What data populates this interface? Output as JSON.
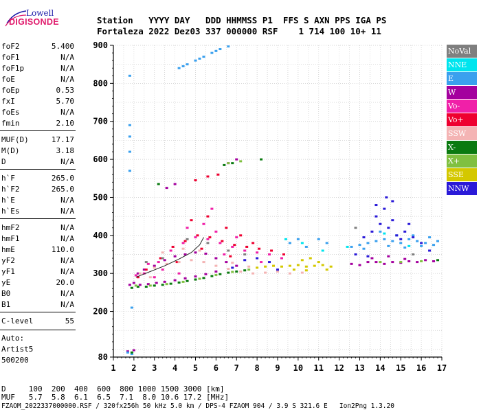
{
  "logo": {
    "line1": "Lowell",
    "line2": "DIGISONDE"
  },
  "header": {
    "line1": "Station   YYYY DAY   DDD HHMMSS P1  FFS S AXN PPS IGA PS",
    "line2": "Fortaleza 2022 Dez03 337 000000 RSF    1 714 100 10+ 11"
  },
  "params": [
    {
      "name": "foF2",
      "value": "5.400"
    },
    {
      "name": "foF1",
      "value": "N/A"
    },
    {
      "name": "foF1p",
      "value": "N/A"
    },
    {
      "name": "foE",
      "value": "N/A"
    },
    {
      "name": "foEp",
      "value": "0.53"
    },
    {
      "name": "fxI",
      "value": "5.70"
    },
    {
      "name": "foEs",
      "value": "N/A"
    },
    {
      "name": "fmin",
      "value": "2.10"
    },
    {
      "name": "MUF(D)",
      "value": "17.17"
    },
    {
      "name": "M(D)",
      "value": "3.18"
    },
    {
      "name": "D",
      "value": "N/A"
    },
    {
      "name": "h`F",
      "value": "265.0"
    },
    {
      "name": "h`F2",
      "value": "265.0"
    },
    {
      "name": "h`E",
      "value": "N/A"
    },
    {
      "name": "h`Es",
      "value": "N/A"
    },
    {
      "name": "hmF2",
      "value": "N/A"
    },
    {
      "name": "hmF1",
      "value": "N/A"
    },
    {
      "name": "hmE",
      "value": "110.0"
    },
    {
      "name": "yF2",
      "value": "N/A"
    },
    {
      "name": "yF1",
      "value": "N/A"
    },
    {
      "name": "yE",
      "value": "20.0"
    },
    {
      "name": "B0",
      "value": "N/A"
    },
    {
      "name": "B1",
      "value": "N/A"
    },
    {
      "name": "C-level",
      "value": "55"
    }
  ],
  "auto": {
    "line1": "Auto:",
    "line2": "Artist5",
    "line3": "500200"
  },
  "legend": [
    {
      "label": "NoVal",
      "color": "#7f7f7f"
    },
    {
      "label": "NNE",
      "color": "#00e5ee"
    },
    {
      "label": "E",
      "color": "#3aa0ee"
    },
    {
      "label": "W",
      "color": "#a4009e"
    },
    {
      "label": "Vo-",
      "color": "#f020a8"
    },
    {
      "label": "Vo+",
      "color": "#ee0030"
    },
    {
      "label": "SSW",
      "color": "#f4b4b4"
    },
    {
      "label": "X-",
      "color": "#0a7a10"
    },
    {
      "label": "X+",
      "color": "#80c040"
    },
    {
      "label": "SSE",
      "color": "#d4c800"
    },
    {
      "label": "NNW",
      "color": "#2a1ad8"
    }
  ],
  "footer": {
    "line1": "D     100  200  400  600  800 1000 1500 3000 [km]",
    "line2": "MUF   5.7  5.8  6.1  6.5  7.1  8.0 10.6 17.2 [MHz]",
    "line3": "FZAOM_2022337000000.RSF / 320fx256h 50 kHz 5.0 km / DPS-4 FZAOM 904 / 3.9 S 321.6 E   Ion2Png 1.3.20"
  },
  "chart_data": {
    "type": "scatter",
    "title": "",
    "xlabel": "",
    "ylabel": "",
    "xlim": [
      1,
      17
    ],
    "ylim": [
      80,
      900
    ],
    "x_ticks": [
      1,
      2,
      3,
      4,
      5,
      6,
      7,
      8,
      9,
      10,
      11,
      12,
      13,
      14,
      15,
      16,
      17
    ],
    "y_ticks": [
      80,
      200,
      300,
      400,
      500,
      600,
      700,
      800,
      900
    ],
    "grid": "dotted",
    "legend_position": "right",
    "series": [
      {
        "name": "W",
        "color": "#a4009e",
        "points": [
          [
            1.8,
            270
          ],
          [
            2.0,
            275
          ],
          [
            2.3,
            270
          ],
          [
            2.7,
            272
          ],
          [
            3.1,
            275
          ],
          [
            3.5,
            278
          ],
          [
            4.0,
            282
          ],
          [
            4.5,
            287
          ],
          [
            5.0,
            292
          ],
          [
            5.5,
            298
          ],
          [
            6.0,
            305
          ],
          [
            2.2,
            300
          ],
          [
            2.5,
            310
          ],
          [
            3.0,
            320
          ],
          [
            3.5,
            335
          ],
          [
            4.0,
            345
          ],
          [
            4.5,
            350
          ],
          [
            5.0,
            355
          ],
          [
            5.5,
            352
          ],
          [
            6.0,
            340
          ],
          [
            6.5,
            330
          ],
          [
            7.0,
            320
          ],
          [
            12.6,
            325
          ],
          [
            13.0,
            322
          ],
          [
            13.4,
            330
          ],
          [
            13.8,
            330
          ],
          [
            14.2,
            325
          ],
          [
            14.6,
            330
          ],
          [
            15.0,
            328
          ],
          [
            15.4,
            332
          ],
          [
            15.8,
            330
          ],
          [
            16.2,
            335
          ],
          [
            16.6,
            332
          ],
          [
            13.6,
            340
          ],
          [
            14.4,
            345
          ],
          [
            15.2,
            338
          ],
          [
            6.6,
            590
          ],
          [
            7.0,
            600
          ],
          [
            3.6,
            525
          ],
          [
            4.0,
            535
          ],
          [
            1.7,
            95
          ],
          [
            2.0,
            98
          ]
        ]
      },
      {
        "name": "Vo-",
        "color": "#f020a8",
        "points": [
          [
            2.5,
            300
          ],
          [
            3.2,
            330
          ],
          [
            3.8,
            360
          ],
          [
            4.4,
            380
          ],
          [
            5.0,
            395
          ],
          [
            5.6,
            390
          ],
          [
            6.2,
            380
          ],
          [
            6.8,
            370
          ],
          [
            7.4,
            360
          ],
          [
            8.0,
            355
          ],
          [
            8.6,
            350
          ],
          [
            9.2,
            340
          ],
          [
            4.6,
            420
          ],
          [
            5.4,
            430
          ],
          [
            6.0,
            410
          ],
          [
            3.4,
            310
          ],
          [
            7.0,
            395
          ],
          [
            8.2,
            330
          ],
          [
            5.8,
            470
          ],
          [
            3.0,
            290
          ],
          [
            2.1,
            295
          ],
          [
            4.2,
            300
          ],
          [
            6.4,
            350
          ],
          [
            2.7,
            325
          ]
        ]
      },
      {
        "name": "Vo+",
        "color": "#ee0030",
        "points": [
          [
            2.6,
            310
          ],
          [
            3.3,
            340
          ],
          [
            3.9,
            370
          ],
          [
            4.5,
            385
          ],
          [
            5.1,
            400
          ],
          [
            5.7,
            395
          ],
          [
            6.3,
            385
          ],
          [
            6.9,
            375
          ],
          [
            7.5,
            370
          ],
          [
            8.1,
            365
          ],
          [
            8.7,
            360
          ],
          [
            9.3,
            350
          ],
          [
            4.8,
            440
          ],
          [
            5.6,
            450
          ],
          [
            6.5,
            420
          ],
          [
            7.2,
            400
          ],
          [
            2.2,
            290
          ],
          [
            5.3,
            365
          ],
          [
            6.1,
            560
          ],
          [
            5.0,
            545
          ],
          [
            5.6,
            555
          ],
          [
            6.7,
            345
          ],
          [
            4.1,
            330
          ],
          [
            7.8,
            380
          ]
        ]
      },
      {
        "name": "SSW",
        "color": "#f4b4b4",
        "points": [
          [
            2.3,
            300
          ],
          [
            3.0,
            315
          ],
          [
            3.6,
            325
          ],
          [
            4.2,
            330
          ],
          [
            4.8,
            335
          ],
          [
            5.4,
            330
          ],
          [
            6.0,
            320
          ],
          [
            6.6,
            312
          ],
          [
            7.2,
            305
          ],
          [
            7.8,
            300
          ],
          [
            8.4,
            302
          ],
          [
            9.0,
            305
          ],
          [
            9.6,
            300
          ],
          [
            10.2,
            302
          ],
          [
            3.4,
            355
          ],
          [
            4.4,
            365
          ],
          [
            5.2,
            360
          ],
          [
            8.8,
            320
          ],
          [
            7.6,
            318
          ],
          [
            6.8,
            328
          ],
          [
            2.8,
            290
          ]
        ]
      },
      {
        "name": "E",
        "color": "#3aa0ee",
        "points": [
          [
            13.0,
            375
          ],
          [
            13.4,
            380
          ],
          [
            13.8,
            385
          ],
          [
            14.2,
            390
          ],
          [
            14.6,
            385
          ],
          [
            15.0,
            380
          ],
          [
            15.4,
            390
          ],
          [
            15.8,
            385
          ],
          [
            16.2,
            380
          ],
          [
            16.6,
            375
          ],
          [
            14.0,
            410
          ],
          [
            14.8,
            400
          ],
          [
            15.6,
            400
          ],
          [
            16.4,
            395
          ],
          [
            12.6,
            370
          ],
          [
            13.2,
            365
          ],
          [
            14.4,
            372
          ],
          [
            15.2,
            368
          ],
          [
            16.0,
            372
          ],
          [
            16.8,
            385
          ],
          [
            4.2,
            840
          ],
          [
            4.6,
            850
          ],
          [
            5.0,
            860
          ],
          [
            5.4,
            870
          ],
          [
            5.8,
            880
          ],
          [
            6.2,
            890
          ],
          [
            6.6,
            897
          ],
          [
            4.4,
            845
          ],
          [
            5.2,
            865
          ],
          [
            6.0,
            885
          ],
          [
            1.8,
            820
          ],
          [
            1.8,
            690
          ],
          [
            1.8,
            660
          ],
          [
            1.8,
            620
          ],
          [
            1.8,
            570
          ],
          [
            1.9,
            210
          ],
          [
            9.6,
            380
          ],
          [
            10.0,
            390
          ],
          [
            10.4,
            370
          ],
          [
            11.0,
            390
          ],
          [
            11.4,
            380
          ],
          [
            1.7,
            92
          ],
          [
            1.9,
            88
          ]
        ]
      },
      {
        "name": "NNW",
        "color": "#2a1ad8",
        "points": [
          [
            13.2,
            395
          ],
          [
            13.6,
            410
          ],
          [
            14.0,
            430
          ],
          [
            14.4,
            420
          ],
          [
            14.8,
            400
          ],
          [
            15.2,
            410
          ],
          [
            15.6,
            395
          ],
          [
            16.0,
            380
          ],
          [
            13.8,
            450
          ],
          [
            14.2,
            470
          ],
          [
            14.6,
            440
          ],
          [
            15.0,
            390
          ],
          [
            16.4,
            360
          ],
          [
            12.8,
            350
          ],
          [
            13.4,
            345
          ],
          [
            8.0,
            340
          ],
          [
            8.6,
            330
          ],
          [
            7.4,
            335
          ],
          [
            9.0,
            310
          ],
          [
            6.8,
            315
          ],
          [
            14.3,
            500
          ],
          [
            13.8,
            480
          ],
          [
            14.6,
            490
          ],
          [
            15.4,
            430
          ]
        ]
      },
      {
        "name": "X-",
        "color": "#0a7a10",
        "points": [
          [
            1.9,
            262
          ],
          [
            2.2,
            265
          ],
          [
            2.6,
            265
          ],
          [
            3.0,
            268
          ],
          [
            3.4,
            270
          ],
          [
            3.8,
            273
          ],
          [
            4.2,
            276
          ],
          [
            4.6,
            280
          ],
          [
            5.0,
            284
          ],
          [
            5.4,
            288
          ],
          [
            5.8,
            293
          ],
          [
            6.2,
            298
          ],
          [
            6.6,
            302
          ],
          [
            7.0,
            305
          ],
          [
            7.4,
            308
          ],
          [
            3.2,
            535
          ],
          [
            6.4,
            585
          ],
          [
            6.8,
            590
          ],
          [
            8.2,
            600
          ],
          [
            16.8,
            335
          ],
          [
            1.9,
            92
          ]
        ]
      },
      {
        "name": "X+",
        "color": "#80c040",
        "points": [
          [
            2.1,
            268
          ],
          [
            2.8,
            268
          ],
          [
            3.6,
            272
          ],
          [
            4.4,
            278
          ],
          [
            5.2,
            286
          ],
          [
            6.0,
            296
          ],
          [
            6.8,
            304
          ],
          [
            7.6,
            310
          ],
          [
            6.6,
            590
          ],
          [
            7.2,
            595
          ],
          [
            14.0,
            330
          ],
          [
            15.0,
            330
          ],
          [
            16.0,
            332
          ]
        ]
      },
      {
        "name": "SSE",
        "color": "#d4c800",
        "points": [
          [
            8.0,
            315
          ],
          [
            8.4,
            318
          ],
          [
            8.8,
            320
          ],
          [
            9.2,
            318
          ],
          [
            9.6,
            320
          ],
          [
            10.0,
            322
          ],
          [
            10.4,
            318
          ],
          [
            10.8,
            320
          ],
          [
            11.2,
            322
          ],
          [
            11.6,
            318
          ],
          [
            10.2,
            335
          ],
          [
            10.6,
            340
          ],
          [
            11.0,
            330
          ],
          [
            9.8,
            310
          ],
          [
            10.4,
            308
          ],
          [
            11.4,
            310
          ]
        ]
      },
      {
        "name": "NNE",
        "color": "#00e5ee",
        "points": [
          [
            9.4,
            390
          ],
          [
            10.2,
            380
          ],
          [
            11.2,
            360
          ],
          [
            12.4,
            370
          ],
          [
            14.2,
            405
          ],
          [
            15.4,
            372
          ]
        ]
      },
      {
        "name": "NoVal",
        "color": "#7f7f7f",
        "points": [
          [
            2.6,
            330
          ],
          [
            3.4,
            340
          ],
          [
            4.6,
            390
          ],
          [
            5.6,
            380
          ],
          [
            6.6,
            360
          ],
          [
            7.4,
            350
          ],
          [
            12.8,
            420
          ],
          [
            15.6,
            350
          ]
        ]
      }
    ],
    "lines": [
      {
        "name": "O-trace",
        "color": "#222222",
        "points": [
          [
            2.1,
            290
          ],
          [
            2.8,
            305
          ],
          [
            3.5,
            320
          ],
          [
            4.2,
            338
          ],
          [
            4.8,
            355
          ],
          [
            5.2,
            375
          ],
          [
            5.4,
            395
          ]
        ]
      }
    ]
  }
}
